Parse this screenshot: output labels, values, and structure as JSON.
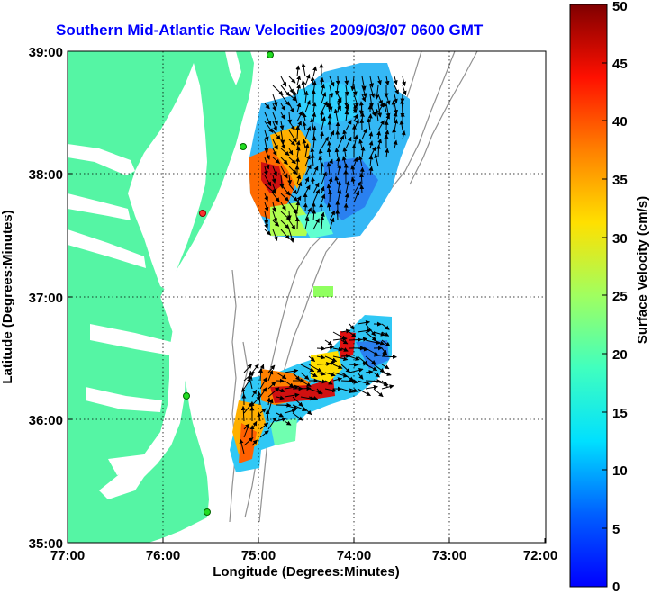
{
  "chart_data": {
    "type": "heatmap",
    "title": "Southern Mid-Atlantic Raw Velocities 2009/03/07 0600 GMT",
    "xlabel": "Longitude (Degrees:Minutes)",
    "ylabel": "Latitude (Degrees:Minutes)",
    "colorbar_label": "Surface Velocity (cm/s)",
    "x_ticks": [
      "77:00",
      "76:00",
      "75:00",
      "74:00",
      "73:00",
      "72:00"
    ],
    "y_ticks": [
      "39:00",
      "38:00",
      "37:00",
      "36:00",
      "35:00"
    ],
    "colorbar_ticks": [
      "50",
      "45",
      "40",
      "35",
      "30",
      "25",
      "20",
      "15",
      "10",
      "5",
      "0"
    ],
    "xlim": [
      -77,
      -72
    ],
    "ylim": [
      35,
      39
    ],
    "clim": [
      0,
      50
    ],
    "grid": true,
    "colors": {
      "land": "#55f5a4",
      "water": "#ffffff",
      "bathymetry": "#909090",
      "title": "#0000ff",
      "station": "#22dd22"
    }
  }
}
